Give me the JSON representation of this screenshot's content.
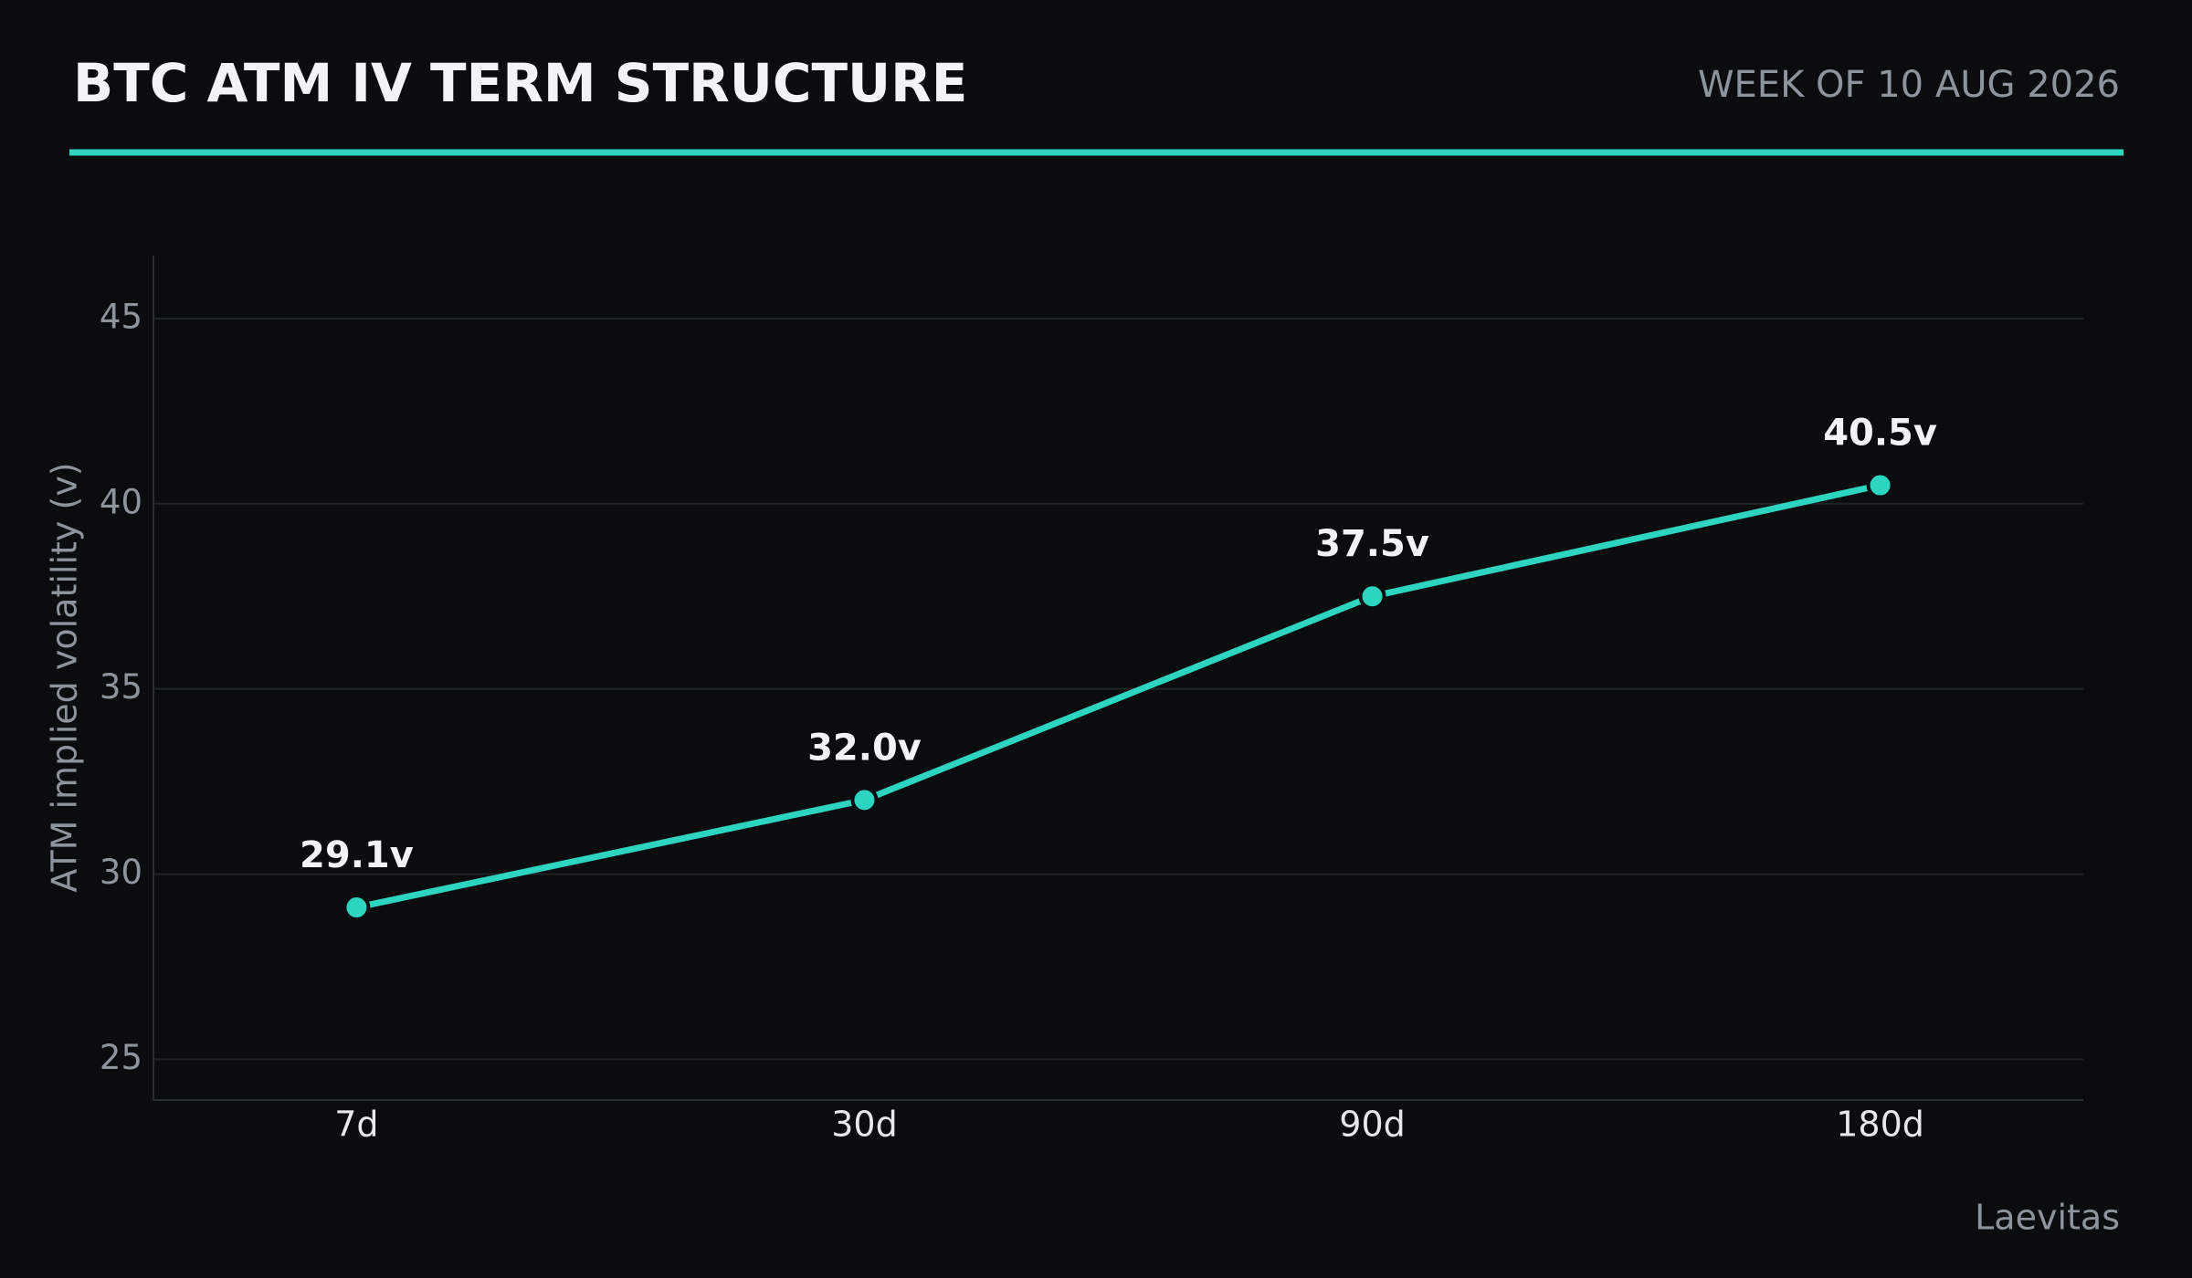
{
  "chart_data": {
    "type": "line",
    "title": "BTC ATM IV TERM STRUCTURE",
    "subtitle": "WEEK OF 10 AUG 2026",
    "y_label": "ATM implied volatility (v)",
    "source": "Laevitas",
    "categories": [
      "7d",
      "30d",
      "90d",
      "180d"
    ],
    "values": [
      29.1,
      32.0,
      37.5,
      40.5
    ],
    "value_labels": [
      "29.1v",
      "32.0v",
      "37.5v",
      "40.5v"
    ],
    "color": "#2dd4bf",
    "ylim": [
      23.9,
      46.7
    ],
    "yticks": [
      25,
      30,
      35,
      40,
      45
    ],
    "grid": true
  }
}
